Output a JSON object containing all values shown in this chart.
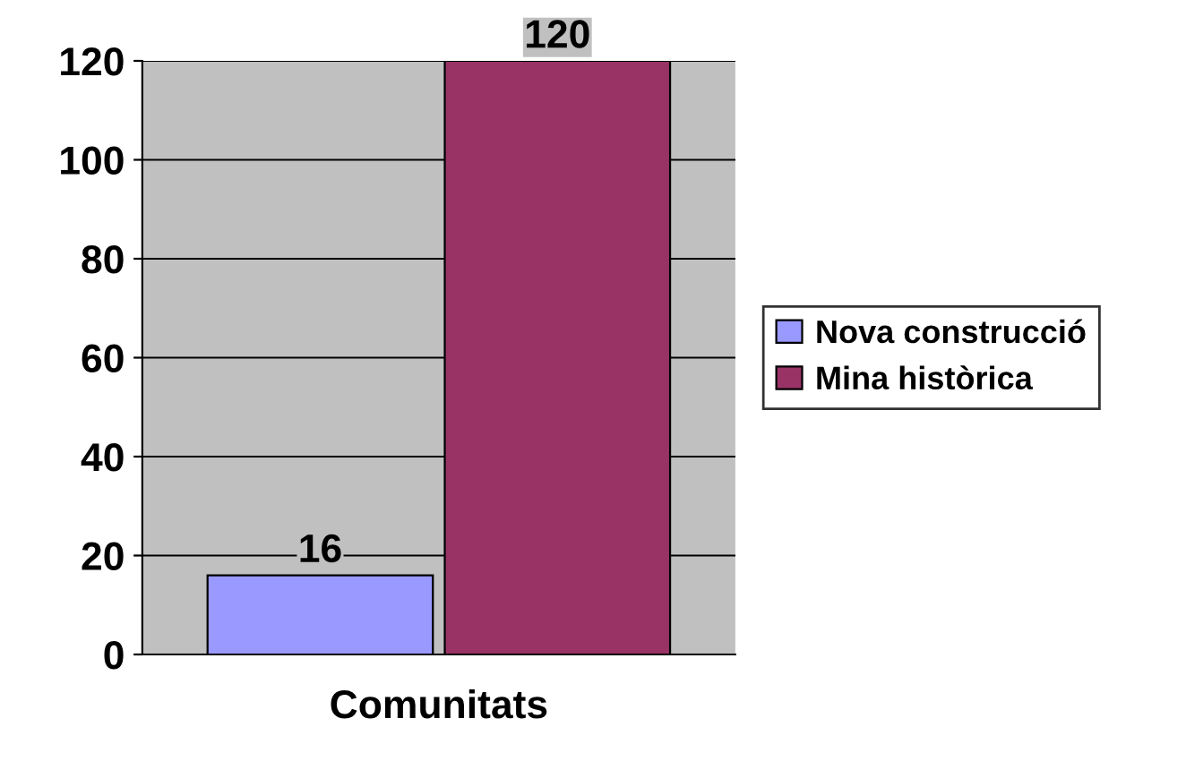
{
  "chart_data": {
    "type": "bar",
    "categories": [
      "Comunitats"
    ],
    "series": [
      {
        "name": "Nova construcció",
        "color": "#9999ff",
        "values": [
          16
        ]
      },
      {
        "name": "Mina històrica",
        "color": "#993366",
        "values": [
          120
        ]
      }
    ],
    "ylim": [
      0,
      120
    ],
    "yticks": [
      0,
      20,
      40,
      60,
      80,
      100,
      120
    ],
    "grid": "y",
    "legend": "right",
    "data_labels": true
  }
}
